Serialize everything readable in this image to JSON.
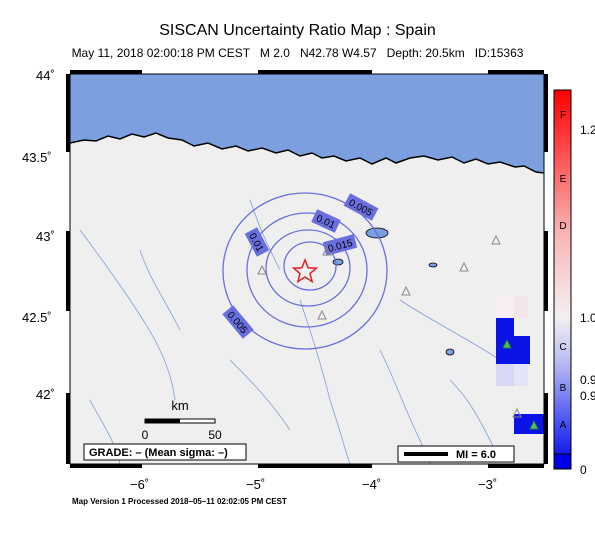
{
  "title": "SISCAN Uncertainty Ratio Map : Spain",
  "subtitle": {
    "datetime": "May 11, 2018 02:00:18 PM CEST",
    "magnitude": "M 2.0",
    "coords": "N42.78 W4.57",
    "depth": "Depth: 20.5km",
    "id": "ID:15363"
  },
  "lat_ticks": [
    "44˚",
    "43.5˚",
    "43˚",
    "42.5˚",
    "42˚"
  ],
  "lon_ticks": [
    "−6˚",
    "−5˚",
    "−4˚",
    "−3˚"
  ],
  "contour_labels": [
    "0.005",
    "0.01",
    "0.015",
    "0.01",
    "0.005"
  ],
  "scale_bar": {
    "unit": "km",
    "start": "0",
    "end": "50"
  },
  "grade_box": "GRADE: – (Mean sigma: –)",
  "legend": {
    "mi_label": "MI = 6.0"
  },
  "colorbar": {
    "letters": [
      "F",
      "E",
      "D",
      "C",
      "B",
      "A"
    ],
    "values": [
      "1.2",
      "1.0",
      "0.9",
      "0.9",
      "0"
    ]
  },
  "footer": "Map Version 1 Processed 2018–05–11 02:02:05 PM CEST",
  "colors": {
    "sea": "#7b9fdf",
    "land": "#efefef",
    "contour": "#6a6fe0",
    "epicenter": "#e02020",
    "station_triangle": "#4fc04f",
    "cell_dark": "#0a14e6"
  }
}
